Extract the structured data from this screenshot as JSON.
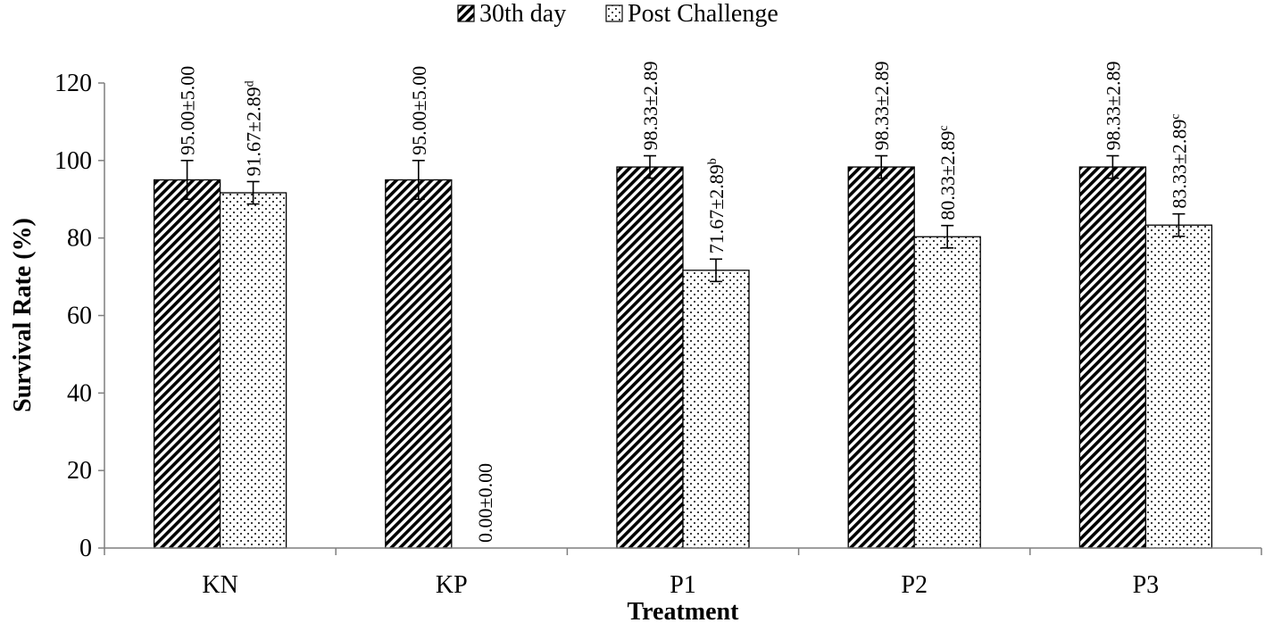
{
  "chart_data": {
    "type": "bar",
    "categories": [
      "KN",
      "KP",
      "P1",
      "P2",
      "P3"
    ],
    "series": [
      {
        "name": "30th day",
        "values": [
          95.0,
          95.0,
          98.33,
          98.33,
          98.33
        ],
        "errors": [
          5.0,
          5.0,
          2.89,
          2.89,
          2.89
        ],
        "labels": [
          "95.00±5.00",
          "95.00±5.00",
          "98.33±2.89",
          "98.33±2.89",
          "98.33±2.89"
        ],
        "label_superscripts": [
          "",
          "",
          "",
          "",
          ""
        ],
        "pattern": "diagonal-hatch"
      },
      {
        "name": "Post Challenge",
        "values": [
          91.67,
          0.0,
          71.67,
          80.33,
          83.33
        ],
        "errors": [
          2.89,
          0.0,
          2.89,
          2.89,
          2.89
        ],
        "labels": [
          "91.67±2.89",
          "0.00±0.00",
          "71.67±2.89",
          "80.33±2.89",
          "83.33±2.89"
        ],
        "label_superscripts": [
          "d",
          "",
          "b",
          "c",
          "c"
        ],
        "pattern": "dots"
      }
    ],
    "xlabel": "Treatment",
    "ylabel": "Survival Rate (%)",
    "ylim": [
      0,
      120
    ],
    "yticks": [
      0,
      20,
      40,
      60,
      80,
      100,
      120
    ],
    "legend_position": "top-center",
    "grid": false
  }
}
